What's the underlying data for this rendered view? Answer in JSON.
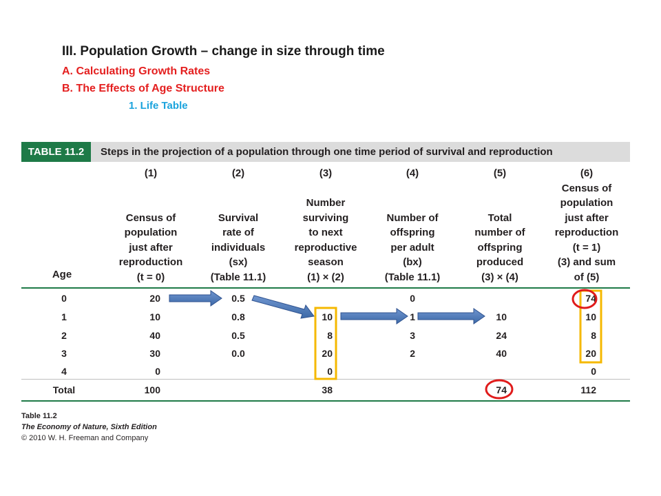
{
  "slide": {
    "heading": "III. Population Growth – change in size through time",
    "sub_a": "A. Calculating Growth Rates",
    "sub_b": "B. The Effects of Age Structure",
    "sub_1": "1. Life Table"
  },
  "table": {
    "tag": "TABLE 11.2",
    "title": "Steps in the projection of a population through one time period of survival and reproduction",
    "age_header": "Age",
    "column_numbers": [
      "(1)",
      "(2)",
      "(3)",
      "(4)",
      "(5)",
      "(6)"
    ],
    "column_headers": [
      [
        "Census of",
        "population",
        "just after",
        "reproduction",
        "(t = 0)"
      ],
      [
        "Survival",
        "rate of",
        "individuals",
        "(sx)",
        "(Table 11.1)"
      ],
      [
        "Number",
        "surviving",
        "to next",
        "reproductive",
        "season",
        "(1) × (2)"
      ],
      [
        "Number of",
        "offspring",
        "per adult",
        "(bx)",
        "(Table 11.1)"
      ],
      [
        "Total",
        "number of",
        "offspring",
        "produced",
        "(3) × (4)"
      ],
      [
        "Census of",
        "population",
        "just after",
        "reproduction",
        "(t = 1)",
        "(3) and sum",
        "of (5)"
      ]
    ],
    "rows": [
      {
        "age": "0",
        "c1": "20",
        "c2": "0.5",
        "c3": "",
        "c4": "0",
        "c5": "",
        "c6": "74"
      },
      {
        "age": "1",
        "c1": "10",
        "c2": "0.8",
        "c3": "10",
        "c4": "1",
        "c5": "10",
        "c6": "10"
      },
      {
        "age": "2",
        "c1": "40",
        "c2": "0.5",
        "c3": "8",
        "c4": "3",
        "c5": "24",
        "c6": "8"
      },
      {
        "age": "3",
        "c1": "30",
        "c2": "0.0",
        "c3": "20",
        "c4": "2",
        "c5": "40",
        "c6": "20"
      },
      {
        "age": "4",
        "c1": "0",
        "c2": "",
        "c3": "0",
        "c4": "",
        "c5": "",
        "c6": "0"
      }
    ],
    "total": {
      "label": "Total",
      "c1": "100",
      "c2": "",
      "c3": "38",
      "c4": "",
      "c5": "74",
      "c6": "112"
    }
  },
  "footer": {
    "line1": "Table 11.2",
    "line2": "The Economy of Nature, Sixth Edition",
    "line3": "© 2010 W. H. Freeman and Company"
  },
  "colors": {
    "banner_green": "#1e7a47",
    "banner_gray": "#dcdcdc",
    "rule_green": "#1e7a47",
    "heading_red": "#e41f1f",
    "subheading_blue": "#1aa3dd",
    "arrow_blue": "#3d6aa8",
    "highlight_yellow": "#f5b800",
    "circle_red": "#e01b1b"
  }
}
